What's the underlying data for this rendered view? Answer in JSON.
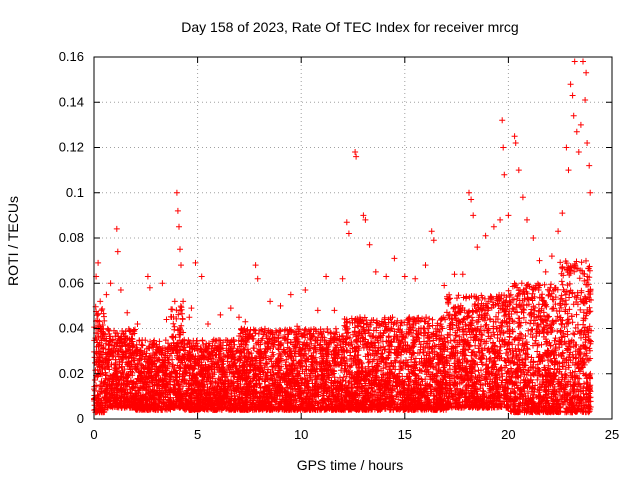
{
  "chart_data": {
    "type": "scatter",
    "title": "Day 158 of 2023, Rate Of TEC Index for receiver mrcg",
    "xlabel": "GPS time / hours",
    "ylabel": "ROTI / TECUs",
    "xlim": [
      0,
      25
    ],
    "ylim": [
      0,
      0.16
    ],
    "x_ticks": [
      0,
      5,
      10,
      15,
      20,
      25
    ],
    "x_tick_labels": [
      "0",
      "5",
      "10",
      "15",
      "20",
      "25"
    ],
    "y_ticks": [
      0,
      0.02,
      0.04,
      0.06,
      0.08,
      0.1,
      0.12,
      0.14,
      0.16
    ],
    "y_tick_labels": [
      "0",
      "0.02",
      "0.04",
      "0.06",
      "0.08",
      "0.1",
      "0.12",
      "0.14",
      "0.16"
    ],
    "grid": true,
    "legend": "none",
    "marker": "plus",
    "color": "#ff0000",
    "points": [
      [
        0.1,
        0.063
      ],
      [
        0.2,
        0.069
      ],
      [
        0.3,
        0.052
      ],
      [
        0.6,
        0.055
      ],
      [
        0.8,
        0.06
      ],
      [
        1.1,
        0.084
      ],
      [
        1.15,
        0.074
      ],
      [
        1.3,
        0.057
      ],
      [
        1.6,
        0.047
      ],
      [
        2.1,
        0.042
      ],
      [
        2.6,
        0.063
      ],
      [
        2.7,
        0.058
      ],
      [
        3.3,
        0.06
      ],
      [
        3.5,
        0.044
      ],
      [
        3.9,
        0.052
      ],
      [
        4.0,
        0.1
      ],
      [
        4.05,
        0.092
      ],
      [
        4.1,
        0.085
      ],
      [
        4.15,
        0.075
      ],
      [
        4.2,
        0.068
      ],
      [
        4.3,
        0.052
      ],
      [
        4.6,
        0.045
      ],
      [
        4.7,
        0.049
      ],
      [
        4.9,
        0.069
      ],
      [
        5.2,
        0.063
      ],
      [
        5.5,
        0.042
      ],
      [
        6.1,
        0.046
      ],
      [
        6.6,
        0.049
      ],
      [
        7.0,
        0.045
      ],
      [
        7.3,
        0.043
      ],
      [
        7.8,
        0.068
      ],
      [
        7.9,
        0.062
      ],
      [
        8.5,
        0.052
      ],
      [
        9.0,
        0.05
      ],
      [
        9.5,
        0.055
      ],
      [
        9.8,
        0.041
      ],
      [
        10.2,
        0.057
      ],
      [
        10.8,
        0.048
      ],
      [
        11.2,
        0.063
      ],
      [
        11.6,
        0.048
      ],
      [
        12.0,
        0.062
      ],
      [
        12.2,
        0.087
      ],
      [
        12.3,
        0.082
      ],
      [
        12.6,
        0.118
      ],
      [
        12.65,
        0.116
      ],
      [
        13.0,
        0.09
      ],
      [
        13.1,
        0.088
      ],
      [
        13.3,
        0.077
      ],
      [
        13.6,
        0.065
      ],
      [
        14.1,
        0.063
      ],
      [
        14.5,
        0.071
      ],
      [
        15.0,
        0.063
      ],
      [
        15.5,
        0.062
      ],
      [
        16.0,
        0.068
      ],
      [
        16.3,
        0.083
      ],
      [
        16.4,
        0.079
      ],
      [
        16.9,
        0.059
      ],
      [
        17.4,
        0.064
      ],
      [
        17.8,
        0.064
      ],
      [
        18.1,
        0.1
      ],
      [
        18.2,
        0.097
      ],
      [
        18.3,
        0.09
      ],
      [
        18.5,
        0.076
      ],
      [
        18.9,
        0.081
      ],
      [
        19.3,
        0.085
      ],
      [
        19.6,
        0.088
      ],
      [
        19.7,
        0.132
      ],
      [
        19.75,
        0.12
      ],
      [
        19.8,
        0.108
      ],
      [
        20.0,
        0.09
      ],
      [
        20.3,
        0.125
      ],
      [
        20.35,
        0.122
      ],
      [
        20.5,
        0.11
      ],
      [
        20.7,
        0.098
      ],
      [
        20.9,
        0.088
      ],
      [
        21.2,
        0.08
      ],
      [
        21.5,
        0.07
      ],
      [
        21.8,
        0.065
      ],
      [
        22.1,
        0.072
      ],
      [
        22.4,
        0.083
      ],
      [
        22.6,
        0.091
      ],
      [
        22.8,
        0.12
      ],
      [
        22.9,
        0.11
      ],
      [
        23.0,
        0.148
      ],
      [
        23.1,
        0.143
      ],
      [
        23.15,
        0.134
      ],
      [
        23.2,
        0.158
      ],
      [
        23.3,
        0.127
      ],
      [
        23.4,
        0.118
      ],
      [
        23.5,
        0.13
      ],
      [
        23.6,
        0.158
      ],
      [
        23.7,
        0.141
      ],
      [
        23.75,
        0.153
      ],
      [
        23.8,
        0.122
      ],
      [
        23.9,
        0.112
      ],
      [
        23.95,
        0.1
      ]
    ],
    "density_bands": [
      {
        "x_from": 0.0,
        "x_to": 0.5,
        "y_from": 0.003,
        "y_to": 0.05
      },
      {
        "x_from": 0.5,
        "x_to": 2.0,
        "y_from": 0.005,
        "y_to": 0.04
      },
      {
        "x_from": 2.0,
        "x_to": 3.7,
        "y_from": 0.004,
        "y_to": 0.035
      },
      {
        "x_from": 3.7,
        "x_to": 4.3,
        "y_from": 0.005,
        "y_to": 0.05
      },
      {
        "x_from": 4.3,
        "x_to": 7.0,
        "y_from": 0.004,
        "y_to": 0.035
      },
      {
        "x_from": 7.0,
        "x_to": 12.0,
        "y_from": 0.004,
        "y_to": 0.04
      },
      {
        "x_from": 12.0,
        "x_to": 17.0,
        "y_from": 0.004,
        "y_to": 0.045
      },
      {
        "x_from": 17.0,
        "x_to": 20.0,
        "y_from": 0.005,
        "y_to": 0.055
      },
      {
        "x_from": 20.0,
        "x_to": 22.5,
        "y_from": 0.003,
        "y_to": 0.06
      },
      {
        "x_from": 22.5,
        "x_to": 24.0,
        "y_from": 0.003,
        "y_to": 0.07
      }
    ]
  }
}
